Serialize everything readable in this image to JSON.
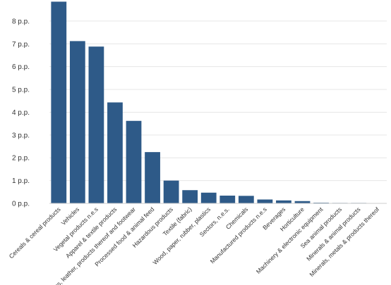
{
  "chart_data": {
    "type": "bar",
    "title": "",
    "xlabel": "",
    "ylabel": "",
    "ylim": [
      0,
      8.8
    ],
    "y_ticks": [
      0,
      1,
      2,
      3,
      4,
      5,
      6,
      7,
      8
    ],
    "y_tick_labels": [
      "0 p.p.",
      "1 p.p.",
      "2 p.p.",
      "3 p.p.",
      "4 p.p.",
      "5 p.p.",
      "6 p.p.",
      "7 p.p.",
      "8 p.p."
    ],
    "grid": true,
    "bar_color": "#2e5a88",
    "categories": [
      "Cereals & cereal products",
      "Vehicles",
      "Vegetal products n.e.s",
      "Apparel & textile products",
      "Skins, leather, products thereof and footwear",
      "Processed food & animal feed",
      "Hazardous products",
      "Textile (fabric)",
      "Wood, paper, rubber, plastics",
      "Sectors, n.e.s.",
      "Chemicals",
      "Manufactured products n.e.s",
      "Beverages",
      "Horticulture",
      "Machinery & electronic equipment",
      "Sea animal products",
      "Minerals & animal products",
      "Minerals, metals & products thereof"
    ],
    "values": [
      8.85,
      7.12,
      6.88,
      4.43,
      3.62,
      2.25,
      1.0,
      0.58,
      0.47,
      0.34,
      0.33,
      0.17,
      0.13,
      0.1,
      0.03,
      0.02,
      0.02,
      0.01
    ]
  }
}
